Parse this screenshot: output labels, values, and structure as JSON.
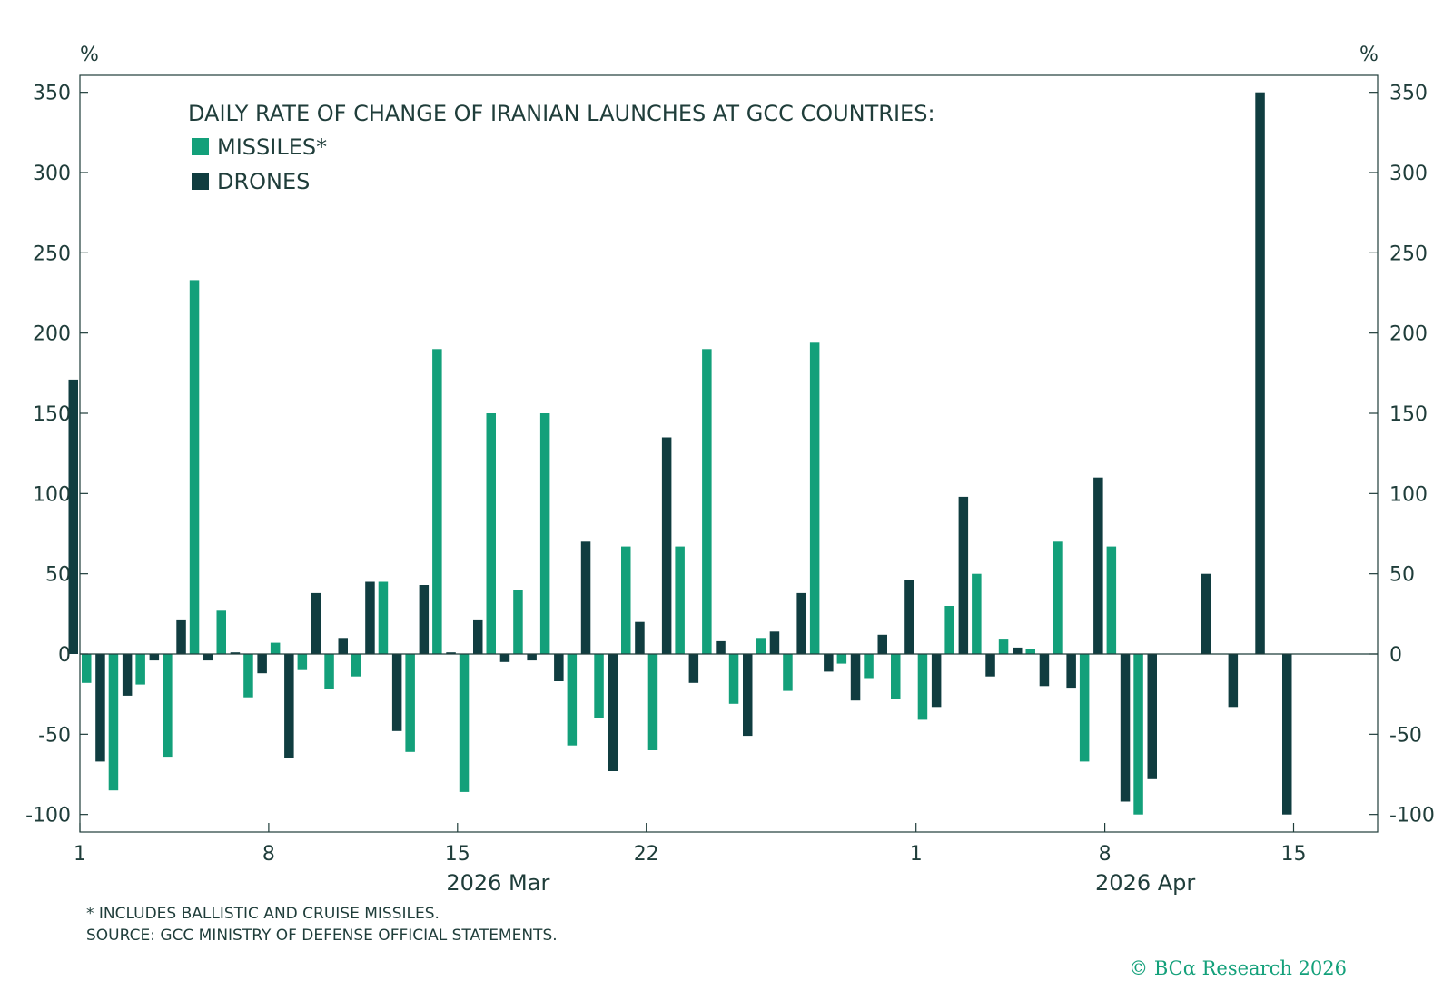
{
  "chart_data": {
    "type": "bar",
    "title": "DAILY RATE OF CHANGE OF IRANIAN LAUNCHES AT GCC COUNTRIES:",
    "ylabel_left": "%",
    "ylabel_right": "%",
    "ylim": [
      -110,
      360
    ],
    "yticks": [
      350,
      300,
      250,
      200,
      150,
      100,
      50,
      0,
      -50,
      -100
    ],
    "xlim": [
      1,
      49
    ],
    "x_ticks": [
      {
        "day": 1,
        "label": "1"
      },
      {
        "day": 8,
        "label": "8"
      },
      {
        "day": 15,
        "label": "15"
      },
      {
        "day": 22,
        "label": "22"
      },
      {
        "day": 32,
        "label": "1"
      },
      {
        "day": 39,
        "label": "8"
      },
      {
        "day": 46,
        "label": "15"
      }
    ],
    "month_labels": [
      {
        "day": 16.5,
        "label": "2026 Mar"
      },
      {
        "day": 40.5,
        "label": "2026 Apr"
      }
    ],
    "series": [
      {
        "name": "MISSILES*",
        "color": "#13a07a",
        "points": [
          {
            "day": 1,
            "value": -18
          },
          {
            "day": 2,
            "value": -85
          },
          {
            "day": 3,
            "value": -19
          },
          {
            "day": 4,
            "value": -64
          },
          {
            "day": 5,
            "value": 233
          },
          {
            "day": 6,
            "value": 27
          },
          {
            "day": 7,
            "value": -27
          },
          {
            "day": 8,
            "value": 7
          },
          {
            "day": 9,
            "value": -10
          },
          {
            "day": 10,
            "value": -22
          },
          {
            "day": 11,
            "value": -14
          },
          {
            "day": 12,
            "value": 45
          },
          {
            "day": 13,
            "value": -61
          },
          {
            "day": 14,
            "value": 190
          },
          {
            "day": 15,
            "value": -86
          },
          {
            "day": 16,
            "value": 150
          },
          {
            "day": 17,
            "value": 40
          },
          {
            "day": 18,
            "value": 150
          },
          {
            "day": 19,
            "value": -57
          },
          {
            "day": 20,
            "value": -40
          },
          {
            "day": 21,
            "value": 67
          },
          {
            "day": 22,
            "value": -60
          },
          {
            "day": 23,
            "value": 67
          },
          {
            "day": 24,
            "value": 190
          },
          {
            "day": 25,
            "value": -31
          },
          {
            "day": 26,
            "value": 10
          },
          {
            "day": 27,
            "value": -23
          },
          {
            "day": 28,
            "value": 194
          },
          {
            "day": 29,
            "value": -6
          },
          {
            "day": 30,
            "value": -15
          },
          {
            "day": 31,
            "value": -28
          },
          {
            "day": 32,
            "value": -41
          },
          {
            "day": 33,
            "value": 30
          },
          {
            "day": 34,
            "value": 50
          },
          {
            "day": 35,
            "value": 9
          },
          {
            "day": 36,
            "value": 3
          },
          {
            "day": 37,
            "value": 70
          },
          {
            "day": 38,
            "value": -67
          },
          {
            "day": 39,
            "value": 67
          },
          {
            "day": 40,
            "value": -100
          }
        ]
      },
      {
        "name": "DRONES",
        "color": "#103d40",
        "points": [
          {
            "day": 1,
            "value": 171
          },
          {
            "day": 2,
            "value": -67
          },
          {
            "day": 3,
            "value": -26
          },
          {
            "day": 4,
            "value": -4
          },
          {
            "day": 5,
            "value": 21
          },
          {
            "day": 6,
            "value": -4
          },
          {
            "day": 7,
            "value": 1
          },
          {
            "day": 8,
            "value": -12
          },
          {
            "day": 9,
            "value": -65
          },
          {
            "day": 10,
            "value": 38
          },
          {
            "day": 11,
            "value": 10
          },
          {
            "day": 12,
            "value": 45
          },
          {
            "day": 13,
            "value": -48
          },
          {
            "day": 14,
            "value": 43
          },
          {
            "day": 15,
            "value": 1
          },
          {
            "day": 16,
            "value": 21
          },
          {
            "day": 17,
            "value": -5
          },
          {
            "day": 18,
            "value": -4
          },
          {
            "day": 19,
            "value": -17
          },
          {
            "day": 20,
            "value": 70
          },
          {
            "day": 21,
            "value": -73
          },
          {
            "day": 22,
            "value": 20
          },
          {
            "day": 23,
            "value": 135
          },
          {
            "day": 24,
            "value": -18
          },
          {
            "day": 25,
            "value": 8
          },
          {
            "day": 26,
            "value": -51
          },
          {
            "day": 27,
            "value": 14
          },
          {
            "day": 28,
            "value": 38
          },
          {
            "day": 29,
            "value": -11
          },
          {
            "day": 30,
            "value": -29
          },
          {
            "day": 31,
            "value": 12
          },
          {
            "day": 32,
            "value": 46
          },
          {
            "day": 33,
            "value": -33
          },
          {
            "day": 34,
            "value": 98
          },
          {
            "day": 35,
            "value": -14
          },
          {
            "day": 36,
            "value": 4
          },
          {
            "day": 37,
            "value": -20
          },
          {
            "day": 38,
            "value": -21
          },
          {
            "day": 39,
            "value": 110
          },
          {
            "day": 40,
            "value": -92
          },
          {
            "day": 41,
            "value": -78
          },
          {
            "day": 43,
            "value": 50
          },
          {
            "day": 44,
            "value": -33
          },
          {
            "day": 45,
            "value": 350
          },
          {
            "day": 46,
            "value": -100
          }
        ]
      }
    ],
    "footnote": "* INCLUDES BALLISTIC AND CRUISE MISSILES.",
    "source": "SOURCE: GCC MINISTRY OF DEFENSE OFFICIAL STATEMENTS."
  },
  "copyright": "© BCα Research 2026"
}
